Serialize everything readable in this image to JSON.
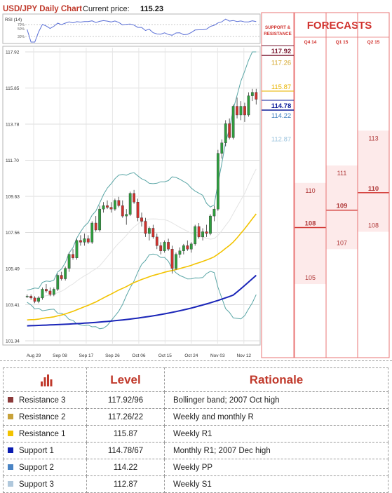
{
  "chart_data": {
    "type": "candlestick",
    "title": "USD/JPY Daily Chart",
    "current_price_label": "Current price:",
    "current_price": "115.23",
    "y_ticks": [
      "117.92",
      "115.85",
      "113.78",
      "111.70",
      "109.63",
      "107.56",
      "105.49",
      "103.41",
      "101.34"
    ],
    "ylim": [
      101.34,
      117.92
    ],
    "x_ticks": [
      "Aug 29",
      "Sep 08",
      "Sep 17",
      "Sep 26",
      "Oct 06",
      "Oct 15",
      "Oct 24",
      "Nov 03",
      "Nov 12"
    ],
    "rsi": {
      "label": "RSI (14)",
      "ticks": [
        "70%",
        "50%",
        "30%"
      ]
    },
    "candles": [
      [
        103.9,
        104.0,
        103.8,
        103.9
      ],
      [
        103.9,
        104.0,
        103.7,
        103.8
      ],
      [
        103.8,
        103.9,
        103.5,
        103.6
      ],
      [
        103.6,
        103.9,
        103.5,
        103.8
      ],
      [
        103.8,
        104.4,
        103.7,
        104.3
      ],
      [
        104.3,
        104.6,
        104.1,
        104.2
      ],
      [
        104.2,
        104.4,
        103.9,
        104.0
      ],
      [
        104.0,
        104.4,
        103.9,
        104.3
      ],
      [
        104.3,
        105.2,
        104.2,
        105.1
      ],
      [
        105.1,
        105.3,
        104.8,
        104.9
      ],
      [
        104.9,
        105.6,
        104.8,
        105.5
      ],
      [
        105.5,
        106.4,
        105.3,
        106.3
      ],
      [
        106.3,
        106.6,
        106.0,
        106.1
      ],
      [
        106.1,
        107.2,
        106.0,
        107.1
      ],
      [
        107.1,
        107.4,
        106.8,
        107.0
      ],
      [
        107.0,
        107.5,
        106.8,
        107.2
      ],
      [
        107.2,
        107.4,
        106.9,
        107.0
      ],
      [
        107.0,
        108.2,
        106.9,
        108.1
      ],
      [
        108.1,
        108.5,
        107.6,
        107.7
      ],
      [
        107.7,
        109.1,
        107.6,
        108.9
      ],
      [
        108.9,
        109.3,
        108.7,
        109.1
      ],
      [
        109.1,
        109.4,
        108.9,
        109.0
      ],
      [
        109.0,
        109.3,
        108.7,
        108.9
      ],
      [
        108.9,
        109.5,
        108.8,
        109.4
      ],
      [
        109.4,
        109.6,
        109.0,
        109.1
      ],
      [
        109.1,
        109.4,
        108.4,
        108.5
      ],
      [
        108.5,
        108.9,
        108.0,
        108.6
      ],
      [
        108.6,
        109.9,
        108.5,
        109.8
      ],
      [
        109.8,
        110.0,
        109.2,
        109.3
      ],
      [
        109.3,
        109.5,
        108.2,
        108.4
      ],
      [
        108.4,
        108.7,
        107.9,
        108.2
      ],
      [
        108.2,
        108.4,
        107.3,
        107.5
      ],
      [
        107.5,
        107.9,
        107.1,
        107.8
      ],
      [
        107.8,
        108.0,
        107.2,
        107.3
      ],
      [
        107.3,
        107.5,
        106.6,
        106.8
      ],
      [
        106.8,
        107.0,
        106.3,
        106.5
      ],
      [
        106.5,
        107.1,
        106.4,
        107.0
      ],
      [
        107.0,
        107.2,
        106.5,
        106.6
      ],
      [
        106.6,
        106.8,
        105.2,
        105.5
      ],
      [
        105.5,
        106.4,
        105.4,
        106.3
      ],
      [
        106.3,
        106.7,
        106.1,
        106.5
      ],
      [
        106.5,
        106.9,
        106.3,
        106.8
      ],
      [
        106.8,
        107.1,
        106.5,
        106.6
      ],
      [
        106.6,
        107.0,
        106.4,
        106.9
      ],
      [
        106.9,
        108.0,
        106.8,
        107.9
      ],
      [
        107.9,
        108.1,
        107.2,
        107.3
      ],
      [
        107.3,
        107.8,
        107.1,
        107.6
      ],
      [
        107.6,
        108.0,
        107.3,
        107.5
      ],
      [
        107.5,
        108.6,
        107.4,
        108.5
      ],
      [
        108.5,
        109.1,
        108.2,
        108.9
      ],
      [
        108.9,
        112.3,
        108.8,
        112.1
      ],
      [
        112.1,
        112.9,
        111.8,
        112.7
      ],
      [
        112.7,
        114.0,
        112.5,
        113.8
      ],
      [
        113.8,
        114.1,
        112.9,
        113.0
      ],
      [
        113.0,
        114.9,
        112.9,
        114.8
      ],
      [
        114.8,
        115.3,
        114.1,
        114.3
      ],
      [
        114.3,
        115.1,
        114.0,
        114.8
      ],
      [
        114.8,
        115.0,
        113.9,
        114.3
      ],
      [
        114.3,
        115.6,
        114.2,
        115.4
      ],
      [
        115.4,
        115.8,
        115.1,
        115.6
      ],
      [
        115.6,
        115.8,
        114.9,
        115.2
      ]
    ],
    "support_resistance_header": "SUPPORT & RESISTANCE",
    "levels": [
      {
        "value": "117.92",
        "color": "#7b1c34"
      },
      {
        "value": "117.26",
        "color": "#d4a72c"
      },
      {
        "value": "115.87",
        "color": "#e8b400"
      },
      {
        "value": "114.78",
        "color": "#0a1b99"
      },
      {
        "value": "114.22",
        "color": "#3f7fc0"
      },
      {
        "value": "112.87",
        "color": "#9cc4de"
      }
    ],
    "forecasts_title": "FORECASTS",
    "forecasts": [
      {
        "period": "Q4 14",
        "top": "110",
        "main": "108",
        "bottom": "105"
      },
      {
        "period": "Q1 15",
        "top": "111",
        "main": "109",
        "bottom": "107"
      },
      {
        "period": "Q2 15",
        "top": "113",
        "main": "110",
        "bottom": "108"
      }
    ]
  },
  "table": {
    "headers": {
      "level": "Level",
      "rationale": "Rationale"
    },
    "rows": [
      {
        "name": "Resistance 3",
        "color": "#8b3a3a",
        "level": "117.92/96",
        "rationale": "Bollinger band; 2007 Oct high"
      },
      {
        "name": "Resistance 2",
        "color": "#c8a23a",
        "level": "117.26/22",
        "rationale": "Weekly and monthly R"
      },
      {
        "name": "Resistance 1",
        "color": "#f2c300",
        "level": "115.87",
        "rationale": "Weekly R1"
      },
      {
        "name": "Support 1",
        "color": "#0a1bb0",
        "level": "114.78/67",
        "rationale": "Monthly R1; 2007 Dec high"
      },
      {
        "name": "Support 2",
        "color": "#4a84c4",
        "level": "114.22",
        "rationale": "Weekly PP"
      },
      {
        "name": "Support 3",
        "color": "#b0c8dc",
        "level": "112.87",
        "rationale": "Weekly S1"
      }
    ]
  }
}
